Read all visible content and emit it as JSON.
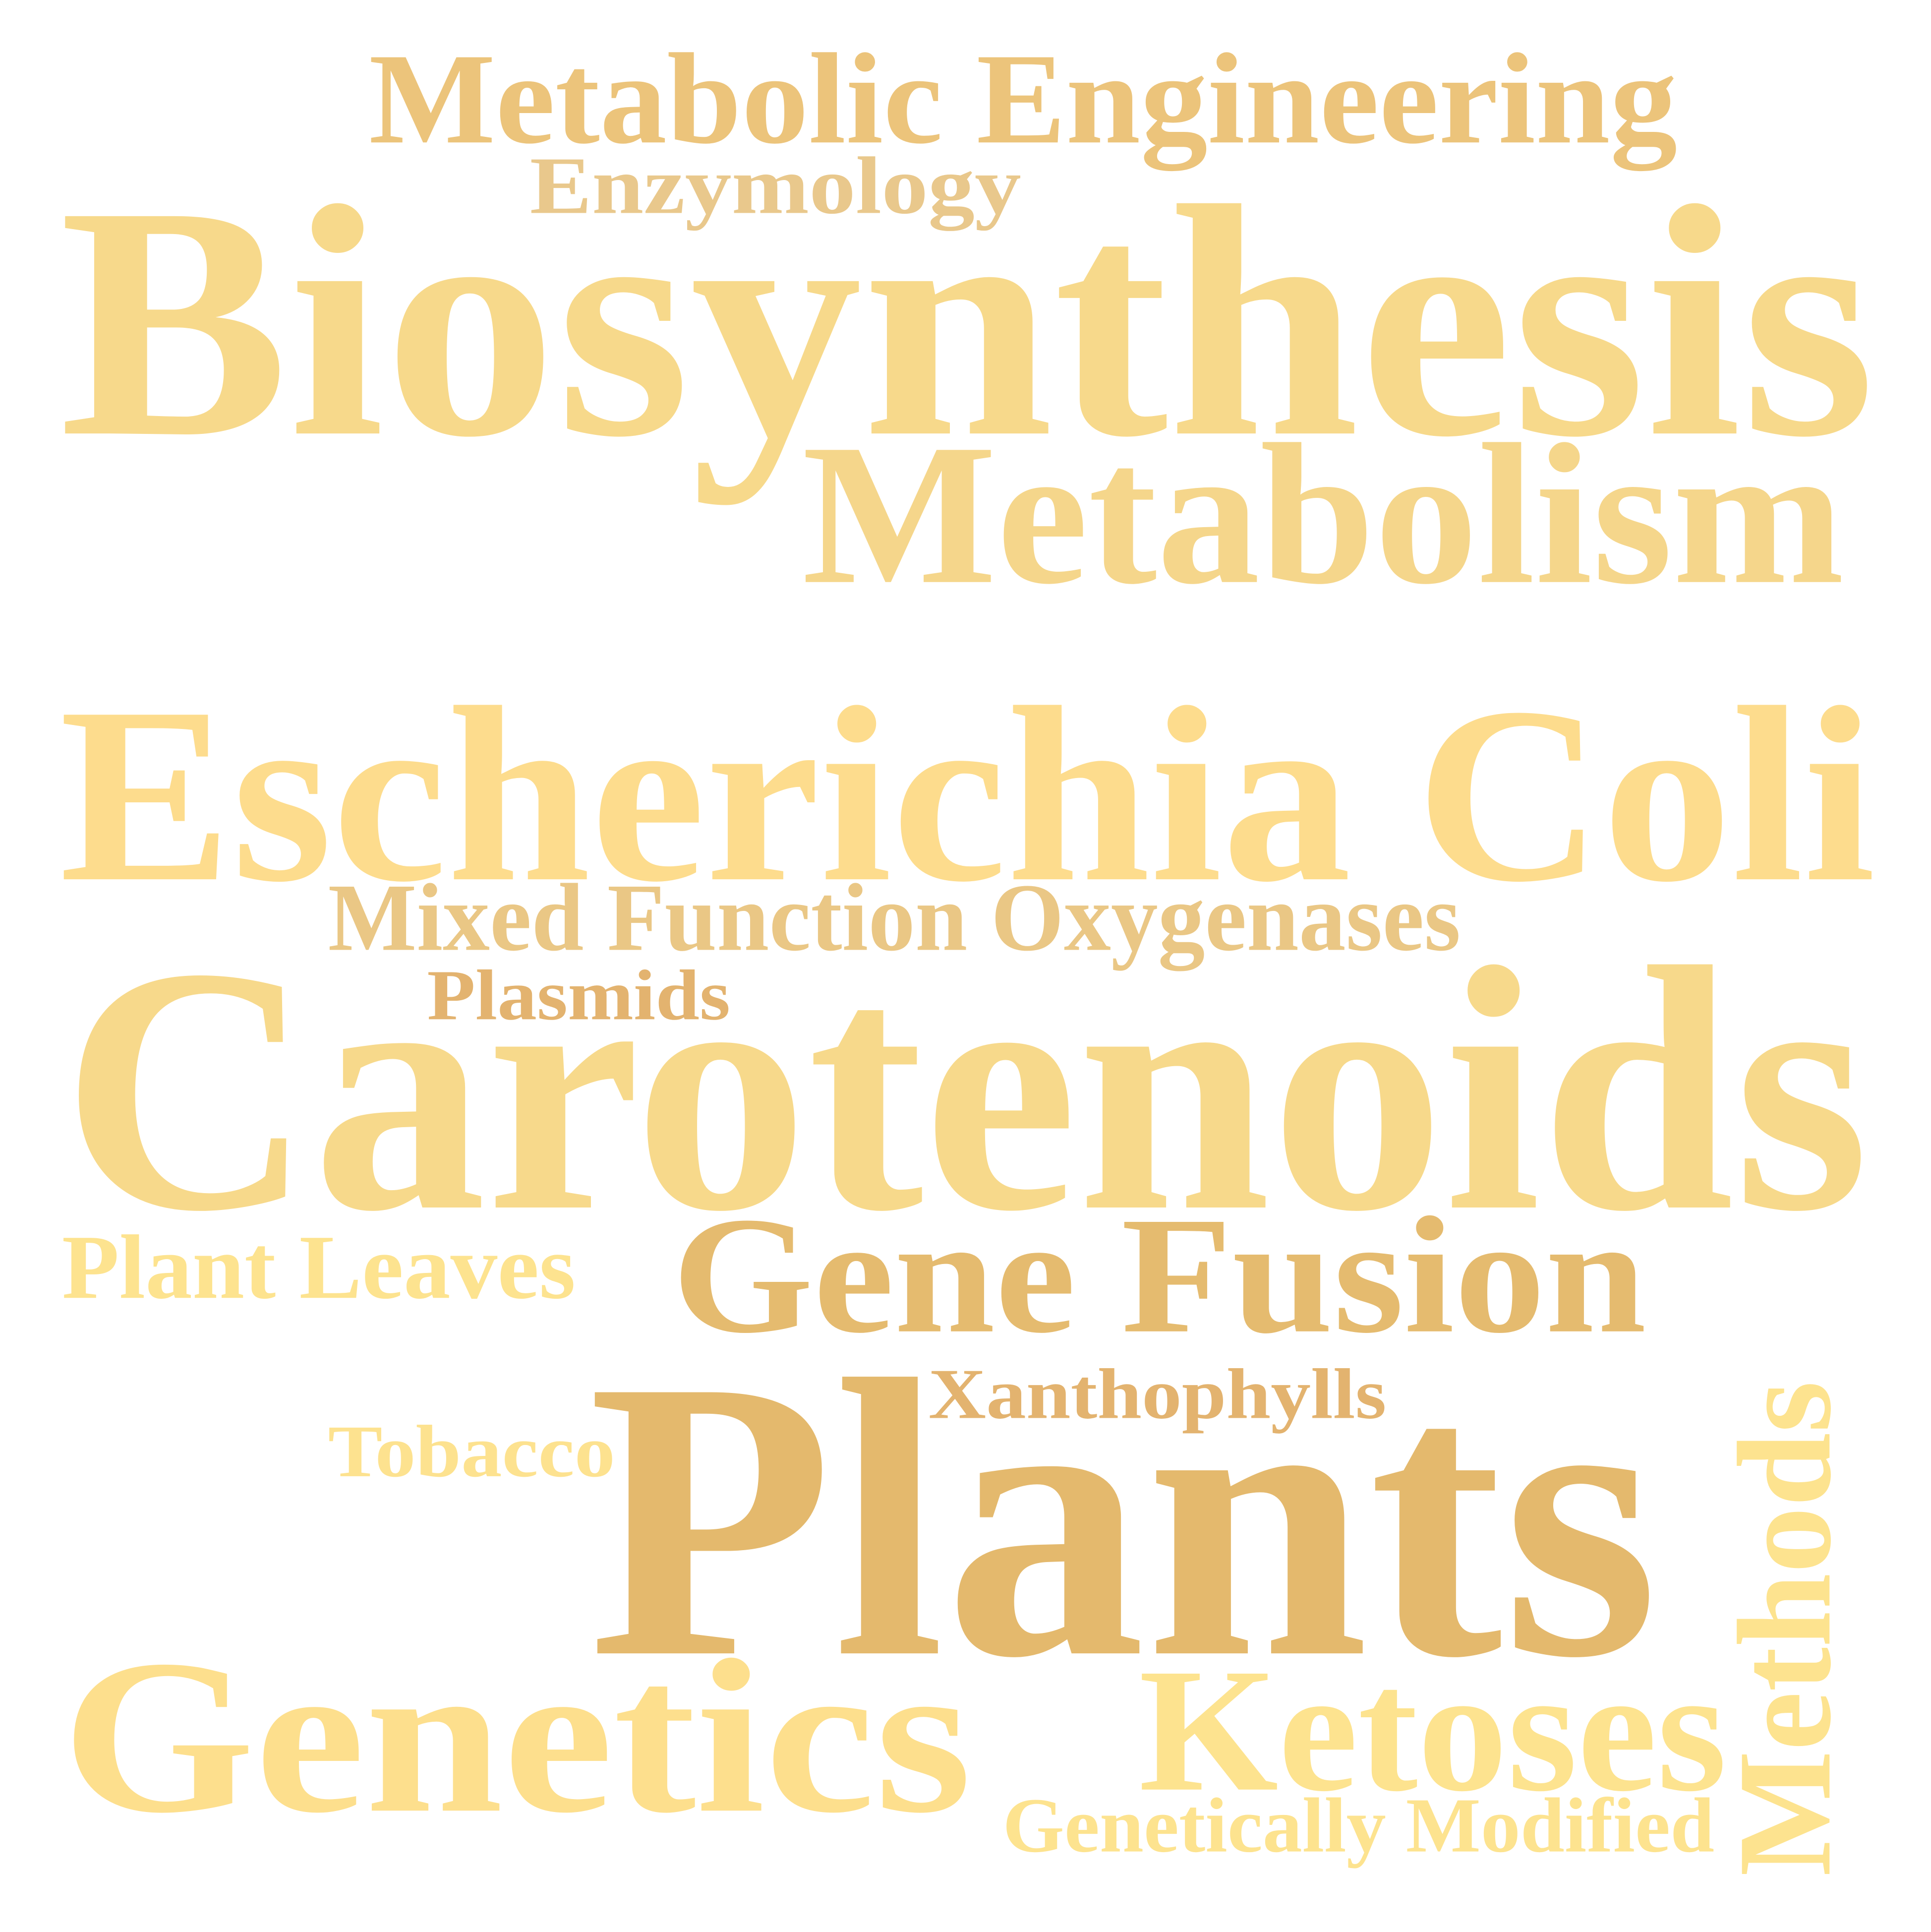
{
  "words": [
    {
      "text": "Metabolic Engineering",
      "color": "#ecc47b"
    },
    {
      "text": "Enzymology",
      "color": "#e9c88c"
    },
    {
      "text": "Biosynthesis",
      "color": "#f7d98b"
    },
    {
      "text": "Metabolism",
      "color": "#f5d68b"
    },
    {
      "text": "Escherichia Coli",
      "color": "#fddc8d"
    },
    {
      "text": "Mixed Function Oxygenases",
      "color": "#eac785"
    },
    {
      "text": "Plasmids",
      "color": "#e3b36f"
    },
    {
      "text": "Carotenoids",
      "color": "#f7d98b"
    },
    {
      "text": "Plant Leaves",
      "color": "#fde38f"
    },
    {
      "text": "Gene Fusion",
      "color": "#e5bb6f"
    },
    {
      "text": "Xanthophylls",
      "color": "#e3b36f"
    },
    {
      "text": "Tobacco",
      "color": "#fde28f"
    },
    {
      "text": "Plants",
      "color": "#e4b96d"
    },
    {
      "text": "Genetics",
      "color": "#fddf8d"
    },
    {
      "text": "Ketoses",
      "color": "#fde38f"
    },
    {
      "text": "Genetically Modified",
      "color": "#fde38f"
    },
    {
      "text": "Methods",
      "color": "#fde38f"
    }
  ]
}
